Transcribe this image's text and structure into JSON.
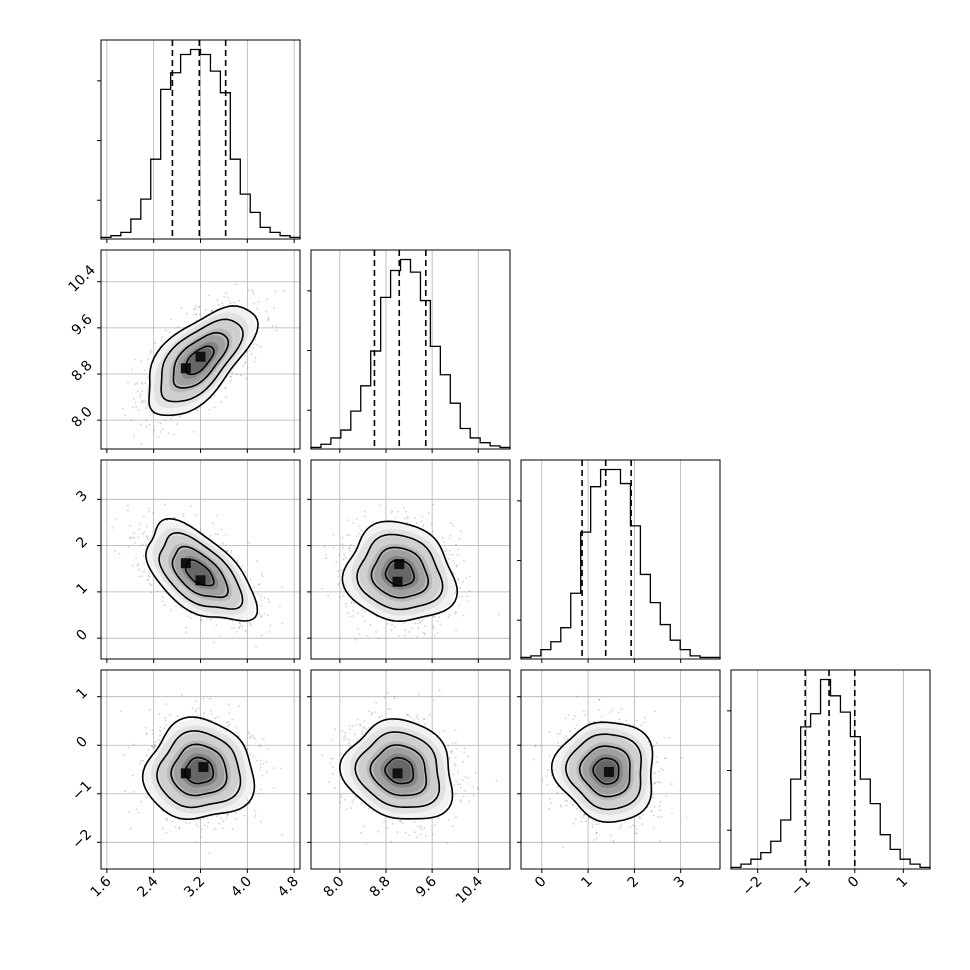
{
  "chart_data": {
    "type": "corner",
    "parameters": [
      {
        "index": 0,
        "range": [
          1.5,
          4.9
        ],
        "ticks": [
          1.6,
          2.4,
          3.2,
          4.0,
          4.8
        ],
        "tick_labels": [
          "1.6",
          "2.4",
          "3.2",
          "4.0",
          "4.8"
        ],
        "quantiles": [
          2.72,
          3.18,
          3.63
        ]
      },
      {
        "index": 1,
        "range": [
          7.5,
          10.95
        ],
        "ticks": [
          8.0,
          8.8,
          9.6,
          10.4
        ],
        "tick_labels": [
          "8.0",
          "8.8",
          "9.6",
          "10.4"
        ],
        "quantiles": [
          8.6,
          9.03,
          9.49
        ]
      },
      {
        "index": 2,
        "range": [
          -0.45,
          3.85
        ],
        "ticks": [
          0,
          1,
          2,
          3
        ],
        "tick_labels": [
          "0",
          "1",
          "2",
          "3"
        ],
        "quantiles": [
          0.87,
          1.38,
          1.93
        ]
      },
      {
        "index": 3,
        "range": [
          -2.55,
          1.55
        ],
        "ticks": [
          -2,
          -1,
          0,
          1
        ],
        "tick_labels": [
          "−2",
          "−1",
          "0",
          "1"
        ],
        "quantiles": [
          -1.02,
          -0.53,
          0.0
        ]
      }
    ],
    "histograms": [
      {
        "parameter": 0,
        "bin_edges": [
          1.5,
          1.67,
          1.84,
          2.01,
          2.18,
          2.35,
          2.52,
          2.69,
          2.86,
          3.03,
          3.2,
          3.37,
          3.54,
          3.71,
          3.88,
          4.05,
          4.22,
          4.39,
          4.56,
          4.73,
          4.9
        ],
        "counts": [
          1,
          2,
          4,
          12,
          24,
          48,
          90,
          100,
          111,
          114,
          111,
          101,
          88,
          48,
          27,
          16,
          7,
          4,
          2,
          1
        ]
      },
      {
        "parameter": 1,
        "bin_edges": [
          7.5,
          7.6725,
          7.845,
          8.0175,
          8.19,
          8.3625,
          8.535,
          8.7075,
          8.88,
          9.0525,
          9.225,
          9.3975,
          9.57,
          9.7425,
          9.915,
          10.0875,
          10.26,
          10.4325,
          10.605,
          10.7775,
          10.95
        ],
        "counts": [
          1,
          3,
          7,
          12,
          24,
          40,
          62,
          96,
          113,
          120,
          112,
          94,
          65,
          47,
          29,
          13,
          7,
          4,
          2,
          1
        ]
      },
      {
        "parameter": 2,
        "bin_edges": [
          -0.45,
          -0.235,
          -0.02,
          0.195,
          0.41,
          0.625,
          0.84,
          1.055,
          1.27,
          1.485,
          1.7,
          1.915,
          2.13,
          2.345,
          2.56,
          2.775,
          2.99,
          3.205,
          3.42,
          3.635,
          3.85
        ],
        "counts": [
          1,
          2,
          6,
          11,
          20,
          42,
          81,
          110,
          121,
          121,
          112,
          85,
          54,
          36,
          22,
          12,
          6,
          2,
          1,
          1
        ]
      },
      {
        "parameter": 3,
        "bin_edges": [
          -2.55,
          -2.345,
          -2.14,
          -1.935,
          -1.73,
          -1.525,
          -1.32,
          -1.115,
          -0.91,
          -0.705,
          -0.5,
          -0.295,
          -0.09,
          0.115,
          0.32,
          0.525,
          0.73,
          0.935,
          1.14,
          1.345,
          1.55
        ],
        "counts": [
          1,
          3,
          6,
          10,
          17,
          30,
          55,
          87,
          95,
          116,
          106,
          96,
          81,
          55,
          40,
          21,
          12,
          6,
          3,
          1
        ]
      }
    ],
    "pairs": [
      {
        "x_param": 0,
        "y_param": 1,
        "mean": [
          3.18,
          9.04
        ],
        "sd": [
          0.45,
          0.46
        ],
        "corr": 0.62,
        "peak_cells": [
          [
            2.95,
            8.9
          ],
          [
            3.2,
            9.1
          ]
        ]
      },
      {
        "x_param": 0,
        "y_param": 2,
        "mean": [
          3.18,
          1.4
        ],
        "sd": [
          0.45,
          0.52
        ],
        "corr": -0.55,
        "peak_cells": [
          [
            2.95,
            1.62
          ],
          [
            3.2,
            1.25
          ]
        ]
      },
      {
        "x_param": 1,
        "y_param": 2,
        "mean": [
          9.04,
          1.4
        ],
        "sd": [
          0.46,
          0.52
        ],
        "corr": -0.1,
        "peak_cells": [
          [
            9.03,
            1.6
          ],
          [
            9.0,
            1.22
          ]
        ]
      },
      {
        "x_param": 0,
        "y_param": 3,
        "mean": [
          3.18,
          -0.53
        ],
        "sd": [
          0.45,
          0.5
        ],
        "corr": 0.0,
        "peak_cells": [
          [
            2.95,
            -0.58
          ],
          [
            3.25,
            -0.45
          ]
        ]
      },
      {
        "x_param": 1,
        "y_param": 3,
        "mean": [
          9.04,
          -0.53
        ],
        "sd": [
          0.46,
          0.5
        ],
        "corr": -0.12,
        "peak_cells": [
          [
            9.0,
            -0.58
          ]
        ]
      },
      {
        "x_param": 2,
        "y_param": 3,
        "mean": [
          1.4,
          -0.53
        ],
        "sd": [
          0.52,
          0.5
        ],
        "corr": -0.05,
        "peak_cells": [
          [
            1.45,
            -0.55
          ]
        ]
      }
    ],
    "contour_levels_sigma": [
      0.5,
      1.0,
      1.5,
      2.0
    ],
    "grid": true,
    "xlabel": "",
    "ylabel": "",
    "title": ""
  }
}
